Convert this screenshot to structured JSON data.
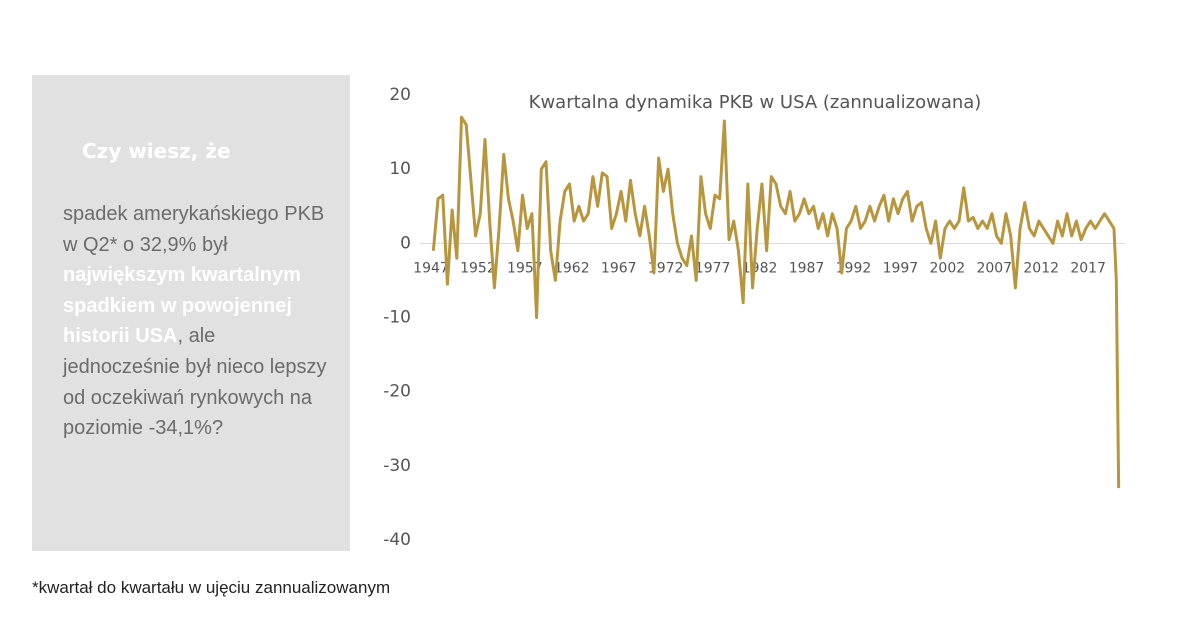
{
  "panel": {
    "heading": "Czy wiesz, że",
    "text_parts": [
      "spadek amerykańskiego PKB w Q2* o 32,9% był ",
      "największym kwartalnym spadkiem w powojennej historii USA",
      ", ale jednocześnie był nieco lepszy od oczekiwań rynkowych na poziomie -34,1%?"
    ]
  },
  "footnote": "*kwartał do kwartału w ujęciu zannualizowanym",
  "chart_data": {
    "type": "line",
    "title": "Kwartalna dynamika PKB w USA (zannualizowana)",
    "x": [
      1947.25,
      1947.75,
      1948.25,
      1948.75,
      1949.25,
      1949.75,
      1950.25,
      1950.75,
      1951.25,
      1951.75,
      1952.25,
      1952.75,
      1953.25,
      1953.75,
      1954.25,
      1954.75,
      1955.25,
      1955.75,
      1956.25,
      1956.75,
      1957.25,
      1957.75,
      1958.25,
      1958.75,
      1959.25,
      1959.75,
      1960.25,
      1960.75,
      1961.25,
      1961.75,
      1962.25,
      1962.75,
      1963.25,
      1963.75,
      1964.25,
      1964.75,
      1965.25,
      1965.75,
      1966.25,
      1966.75,
      1967.25,
      1967.75,
      1968.25,
      1968.75,
      1969.25,
      1969.75,
      1970.25,
      1970.75,
      1971.25,
      1971.75,
      1972.25,
      1972.75,
      1973.25,
      1973.75,
      1974.25,
      1974.75,
      1975.25,
      1975.75,
      1976.25,
      1976.75,
      1977.25,
      1977.75,
      1978.25,
      1978.75,
      1979.25,
      1979.75,
      1980.25,
      1980.75,
      1981.25,
      1981.75,
      1982.25,
      1982.75,
      1983.25,
      1983.75,
      1984.25,
      1984.75,
      1985.25,
      1985.75,
      1986.25,
      1986.75,
      1987.25,
      1987.75,
      1988.25,
      1988.75,
      1989.25,
      1989.75,
      1990.25,
      1990.75,
      1991.25,
      1991.75,
      1992.25,
      1992.75,
      1993.25,
      1993.75,
      1994.25,
      1994.75,
      1995.25,
      1995.75,
      1996.25,
      1996.75,
      1997.25,
      1997.75,
      1998.25,
      1998.75,
      1999.25,
      1999.75,
      2000.25,
      2000.75,
      2001.25,
      2001.75,
      2002.25,
      2002.75,
      2003.25,
      2003.75,
      2004.25,
      2004.75,
      2005.25,
      2005.75,
      2006.25,
      2006.75,
      2007.25,
      2007.75,
      2008.25,
      2008.75,
      2009.25,
      2009.75,
      2010.25,
      2010.75,
      2011.25,
      2011.75,
      2012.25,
      2012.75,
      2013.25,
      2013.75,
      2014.25,
      2014.75,
      2015.25,
      2015.75,
      2016.25,
      2016.75,
      2017.25,
      2017.75,
      2018.25,
      2018.75,
      2019.25,
      2019.75,
      2020,
      2020.25
    ],
    "series": [
      {
        "name": "PKB",
        "color": "#b8963e",
        "values": [
          -1,
          6,
          6.5,
          -5.5,
          4.5,
          -2,
          17,
          16,
          8.5,
          1,
          4,
          14,
          3,
          -6,
          2,
          12,
          6,
          3,
          -1,
          6.5,
          2,
          4,
          -10,
          10,
          11,
          -1,
          -5,
          3,
          7,
          8,
          3,
          5,
          3,
          4,
          9,
          5,
          9.5,
          9,
          2,
          4,
          7,
          3,
          8.5,
          4,
          1,
          5,
          1,
          -4,
          11.5,
          7,
          10,
          4,
          0,
          -2,
          -3,
          1,
          -5,
          9,
          4,
          2,
          6.5,
          6,
          16.5,
          0.5,
          3,
          -1,
          -8,
          8,
          -6,
          2,
          8,
          -1,
          9,
          8,
          5,
          4,
          7,
          3,
          4,
          6,
          4,
          5,
          2,
          4,
          1,
          4,
          2,
          -4,
          2,
          3,
          5,
          2,
          3,
          5,
          3,
          5,
          6.5,
          3,
          6,
          4,
          6,
          7,
          3,
          5,
          5.5,
          2,
          0,
          3,
          -2,
          2,
          3,
          2,
          3,
          7.5,
          3,
          3.5,
          2,
          3,
          2,
          4,
          1,
          0,
          4,
          1,
          -6,
          2,
          5.5,
          2,
          1,
          3,
          2,
          1,
          0,
          3,
          1,
          4,
          1,
          3,
          0.5,
          2,
          3,
          2,
          3,
          4,
          3,
          2,
          -5,
          -33
        ]
      }
    ],
    "xlim": [
      1947,
      2020.5
    ],
    "xticks": [
      1947,
      1952,
      1957,
      1962,
      1967,
      1972,
      1977,
      1982,
      1987,
      1992,
      1997,
      2002,
      2007,
      2012,
      2017
    ],
    "ylim": [
      -40,
      20
    ],
    "yticks": [
      20,
      10,
      0,
      -10,
      -20,
      -30,
      -40
    ]
  }
}
